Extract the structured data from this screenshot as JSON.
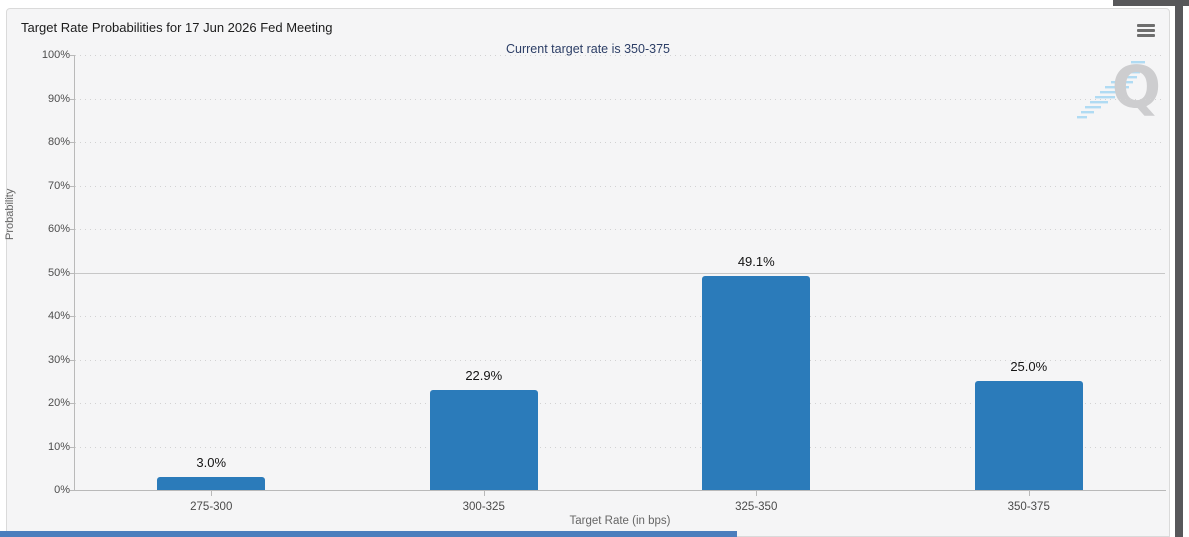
{
  "header": {
    "title": "Target Rate Probabilities for 17 Jun 2026 Fed Meeting"
  },
  "chart_data": {
    "type": "bar",
    "title": "Target Rate Probabilities for 17 Jun 2026 Fed Meeting",
    "subtitle": "Current target rate is 350-375",
    "categories": [
      "275-300",
      "300-325",
      "325-350",
      "350-375"
    ],
    "values": [
      3.0,
      22.9,
      49.1,
      25.0
    ],
    "value_labels": [
      "3.0%",
      "22.9%",
      "49.1%",
      "25.0%"
    ],
    "xlabel": "Target Rate (in bps)",
    "ylabel": "Probability",
    "ylim": [
      0,
      100
    ],
    "ytick_step": 10,
    "ytick_labels": [
      "0%",
      "10%",
      "20%",
      "30%",
      "40%",
      "50%",
      "60%",
      "70%",
      "80%",
      "90%",
      "100%"
    ],
    "solid_gridline_at": 50,
    "grid": "dotted horizontal",
    "legend": "none",
    "bar_color": "#2b7bba"
  },
  "watermark": {
    "letter": "Q",
    "name": "quikstrike-logo"
  },
  "icons": {
    "menu": "hamburger-icon"
  },
  "colors": {
    "panel_bg": "#f5f5f6",
    "panel_border": "#dadada",
    "bar": "#2b7bba",
    "subtitle_text": "#2c3e66",
    "scrollbar": "#57575a",
    "bottom_strip": "#4b7ebd"
  }
}
